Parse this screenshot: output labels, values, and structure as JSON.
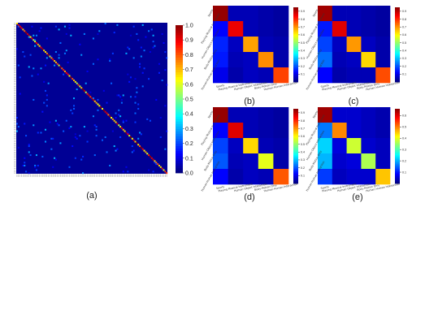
{
  "colormap": "jet",
  "chart_data": [
    {
      "panel": "(a)",
      "type": "heatmap",
      "n_classes": 101,
      "colorbar_ticks": [
        "0.0",
        "0.1",
        "0.2",
        "0.3",
        "0.4",
        "0.5",
        "0.6",
        "0.7",
        "0.8",
        "0.9",
        "1.0"
      ],
      "vlim": [
        0,
        1
      ],
      "diagonal_high": true
    },
    {
      "panel": "(b)",
      "type": "heatmap",
      "row_labels": [
        "Sports",
        "Playing Musical Instrument",
        "Human-Object Interaction",
        "Body-Motion Only",
        "Human-Human Interaction"
      ],
      "col_labels": [
        "Sports",
        "Playing Musical Instrument",
        "Human-Object Interaction",
        "Body-Motion Only",
        "Human-Human Interaction"
      ],
      "colorbar_ticks": [
        "0.1",
        "0.2",
        "0.3",
        "0.4",
        "0.5",
        "0.6",
        "0.7",
        "0.8",
        "0.9"
      ],
      "vlim": [
        0,
        0.95
      ],
      "values": [
        [
          0.93,
          0.05,
          0.05,
          0.04,
          0.03
        ],
        [
          0.12,
          0.85,
          0.05,
          0.04,
          0.03
        ],
        [
          0.15,
          0.06,
          0.68,
          0.05,
          0.04
        ],
        [
          0.14,
          0.05,
          0.06,
          0.7,
          0.04
        ],
        [
          0.1,
          0.04,
          0.06,
          0.05,
          0.77
        ]
      ]
    },
    {
      "panel": "(c)",
      "type": "heatmap",
      "row_labels": [
        "Sports",
        "Playing Musical Instrument",
        "Human-Object Interaction",
        "Body-Motion Only",
        "Human-Human Interaction"
      ],
      "col_labels": [
        "Sports",
        "Playing Musical Instrument",
        "Human-Object Interaction",
        "Body-Motion Only",
        "Human-Human Interaction"
      ],
      "colorbar_ticks": [
        "0.1",
        "0.2",
        "0.3",
        "0.4",
        "0.5",
        "0.6",
        "0.7",
        "0.8",
        "0.9"
      ],
      "vlim": [
        0,
        0.95
      ],
      "values": [
        [
          0.92,
          0.05,
          0.05,
          0.04,
          0.03
        ],
        [
          0.14,
          0.86,
          0.05,
          0.04,
          0.03
        ],
        [
          0.18,
          0.06,
          0.69,
          0.06,
          0.04
        ],
        [
          0.22,
          0.05,
          0.06,
          0.63,
          0.04
        ],
        [
          0.12,
          0.04,
          0.05,
          0.05,
          0.76
        ]
      ]
    },
    {
      "panel": "(d)",
      "type": "heatmap",
      "row_labels": [
        "Sports",
        "Playing Musical Instrument",
        "Human-Object Interaction",
        "Body-Motion Only",
        "Human-Human Interaction"
      ],
      "col_labels": [
        "Sports",
        "Playing Musical Instrument",
        "Human-Object Interaction",
        "Body-Motion Only",
        "Human-Human Interaction"
      ],
      "colorbar_ticks": [
        "0.1",
        "0.2",
        "0.3",
        "0.4",
        "0.5",
        "0.6",
        "0.7",
        "0.8",
        "0.9"
      ],
      "vlim": [
        0,
        0.95
      ],
      "values": [
        [
          0.93,
          0.05,
          0.05,
          0.04,
          0.03
        ],
        [
          0.12,
          0.86,
          0.05,
          0.04,
          0.03
        ],
        [
          0.18,
          0.06,
          0.63,
          0.05,
          0.04
        ],
        [
          0.2,
          0.05,
          0.06,
          0.57,
          0.04
        ],
        [
          0.12,
          0.04,
          0.06,
          0.05,
          0.75
        ]
      ]
    },
    {
      "panel": "(e)",
      "type": "heatmap",
      "row_labels": [
        "Sports",
        "Playing Musical Instrument",
        "Human-Object Interaction",
        "Body-Motion Only",
        "Human-Human Interaction"
      ],
      "col_labels": [
        "Sports",
        "Playing Musical Instrument",
        "Human-Object Interaction",
        "Body-Motion Only",
        "Human-Human Interaction"
      ],
      "colorbar_ticks": [
        "0.1",
        "0.2",
        "0.3",
        "0.4",
        "0.5",
        "0.6"
      ],
      "vlim": [
        0,
        0.66
      ],
      "values": [
        [
          0.64,
          0.05,
          0.05,
          0.04,
          0.03
        ],
        [
          0.16,
          0.49,
          0.05,
          0.04,
          0.03
        ],
        [
          0.22,
          0.06,
          0.38,
          0.05,
          0.04
        ],
        [
          0.2,
          0.05,
          0.06,
          0.36,
          0.04
        ],
        [
          0.12,
          0.04,
          0.05,
          0.05,
          0.45
        ]
      ]
    }
  ]
}
